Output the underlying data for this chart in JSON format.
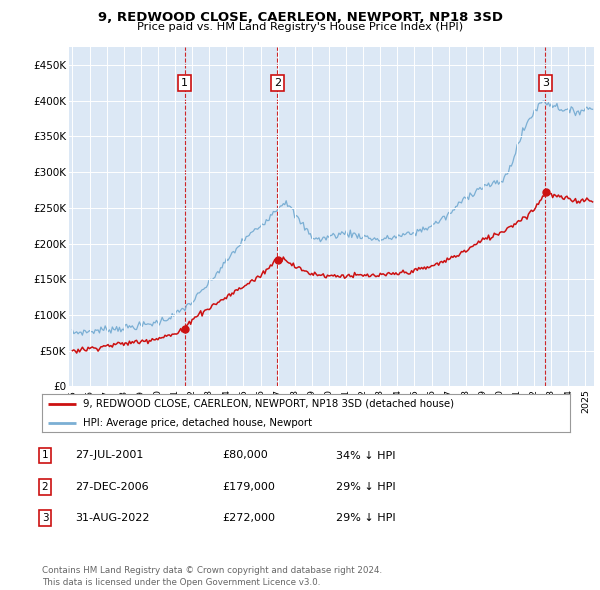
{
  "title": "9, REDWOOD CLOSE, CAERLEON, NEWPORT, NP18 3SD",
  "subtitle": "Price paid vs. HM Land Registry's House Price Index (HPI)",
  "background_color": "#ffffff",
  "plot_bg_color": "#dce8f5",
  "grid_color": "#ffffff",
  "hpi_color": "#7bafd4",
  "price_color": "#cc1111",
  "vline_color": "#cc1111",
  "ylim": [
    0,
    475000
  ],
  "yticks": [
    0,
    50000,
    100000,
    150000,
    200000,
    250000,
    300000,
    350000,
    400000,
    450000
  ],
  "ytick_labels": [
    "£0",
    "£50K",
    "£100K",
    "£150K",
    "£200K",
    "£250K",
    "£300K",
    "£350K",
    "£400K",
    "£450K"
  ],
  "xlim_start": 1994.8,
  "xlim_end": 2025.5,
  "xticks": [
    1995,
    1996,
    1997,
    1998,
    1999,
    2000,
    2001,
    2002,
    2003,
    2004,
    2005,
    2006,
    2007,
    2008,
    2009,
    2010,
    2011,
    2012,
    2013,
    2014,
    2015,
    2016,
    2017,
    2018,
    2019,
    2020,
    2021,
    2022,
    2023,
    2024,
    2025
  ],
  "sales": [
    {
      "date_num": 2001.57,
      "price": 80000,
      "label": "1"
    },
    {
      "date_num": 2006.99,
      "price": 179000,
      "label": "2"
    },
    {
      "date_num": 2022.66,
      "price": 272000,
      "label": "3"
    }
  ],
  "legend_entries": [
    {
      "label": "9, REDWOOD CLOSE, CAERLEON, NEWPORT, NP18 3SD (detached house)",
      "color": "#cc1111"
    },
    {
      "label": "HPI: Average price, detached house, Newport",
      "color": "#7bafd4"
    }
  ],
  "table_rows": [
    {
      "num": "1",
      "date": "27-JUL-2001",
      "price": "£80,000",
      "note": "34% ↓ HPI"
    },
    {
      "num": "2",
      "date": "27-DEC-2006",
      "price": "£179,000",
      "note": "29% ↓ HPI"
    },
    {
      "num": "3",
      "date": "31-AUG-2022",
      "price": "£272,000",
      "note": "29% ↓ HPI"
    }
  ],
  "footer": "Contains HM Land Registry data © Crown copyright and database right 2024.\nThis data is licensed under the Open Government Licence v3.0.",
  "hpi_anchors_x": [
    1995.0,
    1996.0,
    1997.0,
    1998.0,
    1999.0,
    2000.0,
    2001.0,
    2002.0,
    2003.0,
    2004.0,
    2005.0,
    2006.0,
    2007.0,
    2007.5,
    2008.0,
    2009.0,
    2009.5,
    2010.0,
    2011.0,
    2012.0,
    2013.0,
    2014.0,
    2015.0,
    2016.0,
    2017.0,
    2018.0,
    2019.0,
    2020.0,
    2020.5,
    2021.0,
    2021.5,
    2022.0,
    2022.5,
    2023.0,
    2023.5,
    2024.0,
    2024.5,
    2025.3
  ],
  "hpi_anchors_y": [
    75000,
    77000,
    80000,
    82000,
    85000,
    90000,
    100000,
    118000,
    145000,
    175000,
    205000,
    225000,
    250000,
    260000,
    240000,
    210000,
    205000,
    210000,
    215000,
    210000,
    205000,
    210000,
    215000,
    225000,
    240000,
    265000,
    280000,
    285000,
    300000,
    335000,
    365000,
    385000,
    400000,
    395000,
    390000,
    385000,
    385000,
    390000
  ],
  "prop_anchors_x": [
    1995.0,
    1996.0,
    1997.0,
    1998.0,
    1999.0,
    2000.0,
    2001.0,
    2001.57,
    2002.0,
    2003.0,
    2004.0,
    2005.0,
    2006.0,
    2006.99,
    2007.5,
    2008.0,
    2008.5,
    2009.0,
    2010.0,
    2011.0,
    2012.0,
    2013.0,
    2014.0,
    2015.0,
    2016.0,
    2017.0,
    2018.0,
    2019.0,
    2020.0,
    2021.0,
    2021.5,
    2022.0,
    2022.66,
    2023.0,
    2023.5,
    2024.0,
    2024.5,
    2025.3
  ],
  "prop_anchors_y": [
    50000,
    53000,
    57000,
    60000,
    63000,
    68000,
    73000,
    80000,
    95000,
    110000,
    125000,
    140000,
    155000,
    179000,
    178000,
    168000,
    162000,
    158000,
    155000,
    155000,
    155000,
    155000,
    158000,
    162000,
    168000,
    178000,
    190000,
    205000,
    215000,
    230000,
    238000,
    248000,
    272000,
    268000,
    265000,
    262000,
    260000,
    262000
  ]
}
